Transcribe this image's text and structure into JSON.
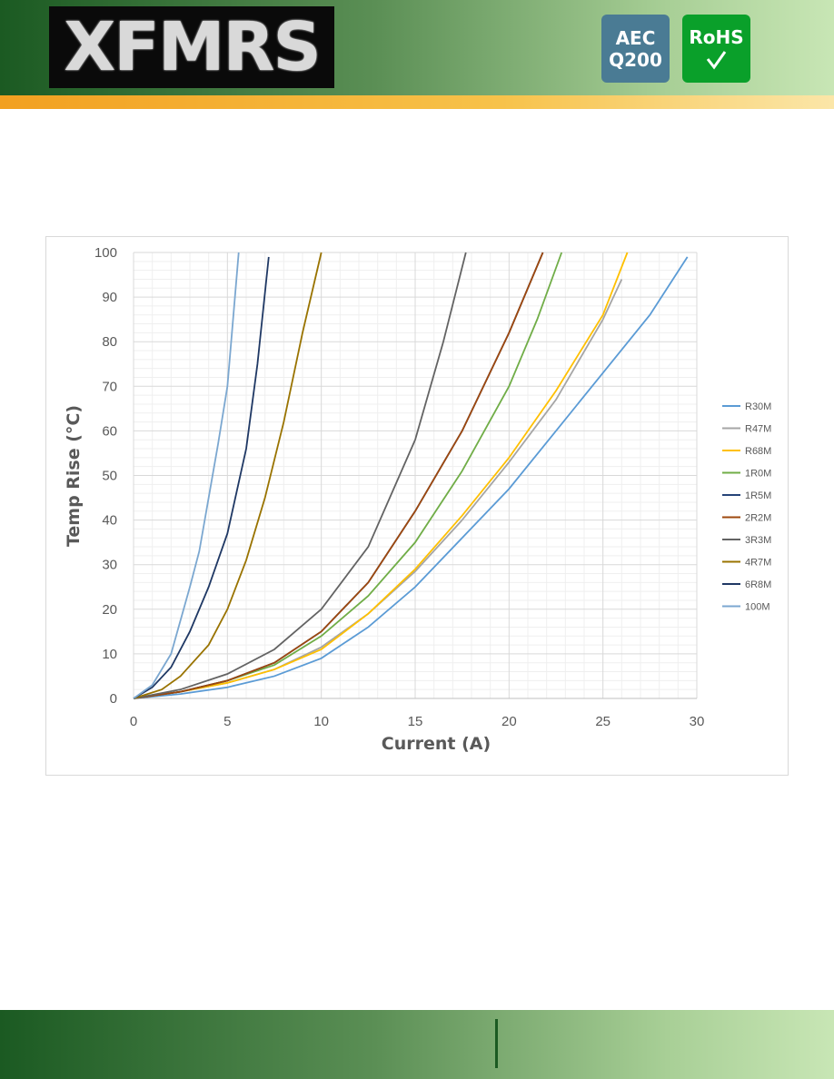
{
  "header": {
    "logo": "XFMRS",
    "badges": [
      [
        "AEC",
        "Q200"
      ],
      [
        "RoHS"
      ]
    ]
  },
  "chart_data": {
    "type": "line",
    "xlabel": "Current (A)",
    "ylabel": "Temp Rise (°C)",
    "xlim": [
      0,
      30
    ],
    "xticks": [
      0,
      5,
      10,
      15,
      20,
      25,
      30
    ],
    "ylim": [
      0,
      100
    ],
    "yticks": [
      0,
      10,
      20,
      30,
      40,
      50,
      60,
      70,
      80,
      90,
      100
    ],
    "grid": true,
    "minor_grid": true,
    "legend": "right",
    "series": [
      {
        "name": "R30M",
        "color": "#5b9bd5",
        "x": [
          0,
          2.5,
          5,
          7.5,
          10,
          12.5,
          15,
          17.5,
          20,
          22.5,
          25,
          27.5,
          29.5
        ],
        "values": [
          0,
          1,
          2.5,
          5,
          9,
          16,
          25,
          36,
          47,
          60,
          73,
          86,
          99
        ]
      },
      {
        "name": "R47M",
        "color": "#a5a5a5",
        "x": [
          0,
          2.5,
          5,
          7.5,
          10,
          12.5,
          15,
          17.5,
          20,
          22.5,
          25,
          26
        ],
        "values": [
          0,
          1.5,
          3.5,
          6.5,
          11.5,
          19,
          28.5,
          40,
          53,
          67,
          85,
          94
        ]
      },
      {
        "name": "R68M",
        "color": "#ffc000",
        "x": [
          0,
          2.5,
          5,
          7.5,
          10,
          12.5,
          15,
          17.5,
          20,
          22.5,
          25,
          26.3
        ],
        "values": [
          0,
          1.5,
          3.5,
          6.5,
          11,
          19,
          29,
          41,
          54,
          69,
          86,
          100
        ]
      },
      {
        "name": "1R0M",
        "color": "#70ad47",
        "x": [
          0,
          2.5,
          5,
          7.5,
          10,
          12.5,
          15,
          17.5,
          20,
          21.5,
          22.8
        ],
        "values": [
          0,
          1.5,
          4,
          7.5,
          14,
          23,
          35,
          51,
          70,
          85,
          100
        ]
      },
      {
        "name": "1R5M",
        "color": "#264478",
        "x": [
          0,
          2.5,
          5,
          7.5,
          10,
          12.5,
          15,
          17.5,
          20,
          21.8
        ],
        "values": [
          0,
          1.5,
          4,
          8,
          15,
          26,
          42,
          60,
          82,
          100
        ]
      },
      {
        "name": "2R2M",
        "color": "#9e480e",
        "x": [
          0,
          2.5,
          5,
          7.5,
          10,
          12.5,
          15,
          17.5,
          20,
          21.8
        ],
        "values": [
          0,
          1.5,
          4,
          8,
          15,
          26,
          42,
          60,
          82,
          100
        ]
      },
      {
        "name": "3R3M",
        "color": "#636363",
        "x": [
          0,
          2.5,
          5,
          7.5,
          10,
          12.5,
          15,
          16.5,
          17.7
        ],
        "values": [
          0,
          2,
          5.5,
          11,
          20,
          34,
          58,
          80,
          100
        ]
      },
      {
        "name": "4R7M",
        "color": "#997300",
        "x": [
          0,
          1.5,
          2.5,
          4,
          5,
          6,
          7,
          8,
          9,
          10
        ],
        "values": [
          0,
          2,
          5,
          12,
          20,
          31,
          45,
          62,
          82,
          100
        ]
      },
      {
        "name": "6R8M",
        "color": "#1f3864",
        "x": [
          0,
          1,
          2,
          3,
          4,
          5,
          6,
          6.6,
          7.2
        ],
        "values": [
          0,
          2.5,
          7,
          15,
          25,
          37,
          56,
          75,
          99
        ]
      },
      {
        "name": "100M",
        "color": "#7ba7d0",
        "x": [
          0,
          1,
          2,
          3,
          3.5,
          4,
          4.5,
          5,
          5.3,
          5.6
        ],
        "values": [
          0,
          3,
          10,
          25,
          33,
          45,
          57,
          70,
          85,
          100
        ]
      }
    ]
  }
}
